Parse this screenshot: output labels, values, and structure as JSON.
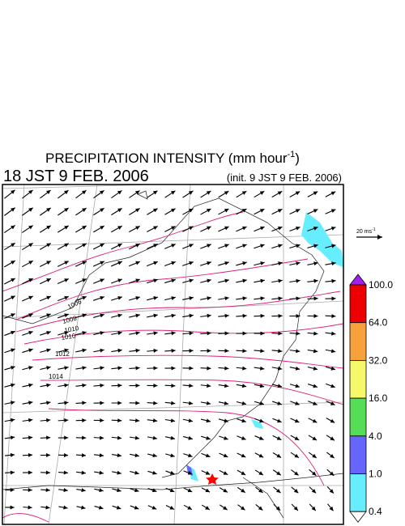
{
  "header": {
    "title": "PRECIPITATION INTENSITY (mm hour",
    "title_exponent": "-1",
    "title_close": ")",
    "valid_time": "18 JST 9 FEB. 2006",
    "init_time": "(init. 9 JST 9 FEB. 2006)"
  },
  "vector_legend": {
    "label": "20 ms",
    "exponent": "-1"
  },
  "colorbar": {
    "labels": [
      "100.0",
      "64.0",
      "32.0",
      "16.0",
      "4.0",
      "1.0",
      "0.4"
    ],
    "colors": [
      "#ee0000",
      "#f7a03c",
      "#f7f76a",
      "#55dd55",
      "#6666ff",
      "#66eeff"
    ],
    "over_color": "#a020f0",
    "under_color": "#ffffff"
  },
  "isobar_labels": [
    "1006",
    "1008",
    "1010",
    "1010",
    "1012",
    "1014"
  ]
}
